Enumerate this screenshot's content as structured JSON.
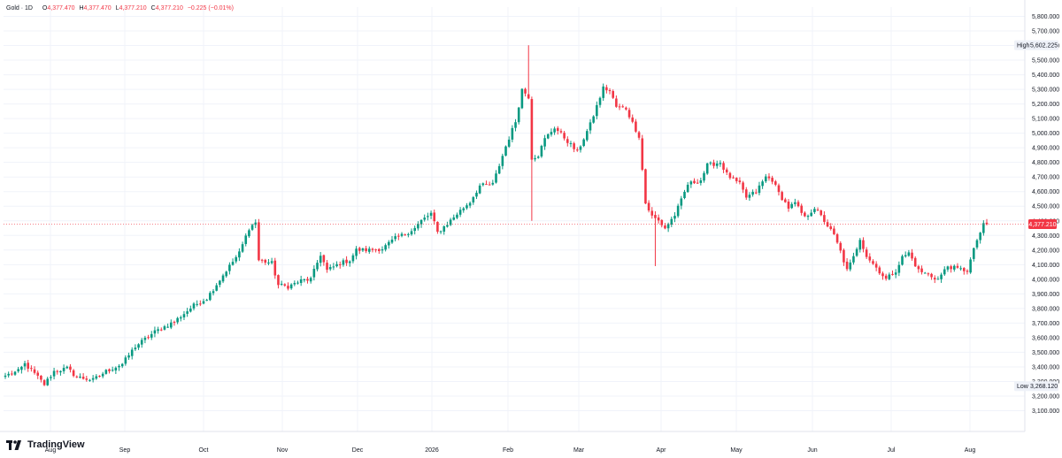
{
  "header": {
    "symbol": "Gold · 1D",
    "open_label": "O",
    "open": "4,377.470",
    "high_label": "H",
    "high": "4,377.470",
    "low_label": "L",
    "low": "4,377.210",
    "close_label": "C",
    "close": "4,377.210",
    "change": "−0.225 (−0.01%)"
  },
  "branding": {
    "name": "TradingView"
  },
  "markers": {
    "high_label": "High",
    "high_value": "5,602.225",
    "low_label": "Low",
    "low_value": "3,268.120",
    "last_value": "4,377.210"
  },
  "colors": {
    "up": "#089981",
    "down": "#f23645",
    "grid": "#f0f3fa",
    "text": "#131722"
  },
  "chart_data": {
    "type": "candlestick",
    "title": "Gold · 1D",
    "x_tick_labels": [
      "Aug",
      "Sep",
      "Oct",
      "Nov",
      "Dec",
      "2026",
      "Feb",
      "Mar",
      "Apr",
      "May",
      "Jun",
      "Jul",
      "Aug"
    ],
    "y_tick_labels": [
      "5,800.000",
      "5,700.000",
      "5,600.000",
      "5,500.000",
      "5,400.000",
      "5,300.000",
      "5,200.000",
      "5,100.000",
      "5,000.000",
      "4,900.000",
      "4,800.000",
      "4,700.000",
      "4,600.000",
      "4,500.000",
      "4,400.000",
      "4,300.000",
      "4,200.000",
      "4,100.000",
      "4,000.000",
      "3,900.000",
      "3,800.000",
      "3,700.000",
      "3,600.000",
      "3,500.000",
      "3,400.000",
      "3,300.000",
      "3,200.000",
      "3,100.000"
    ],
    "ylim": [
      3050,
      5850
    ],
    "grid": true,
    "series_high": 5602.225,
    "series_low": 3268.12,
    "last_close": 4377.21,
    "key_points": [
      [
        0,
        3340
      ],
      [
        4,
        3370
      ],
      [
        6,
        3420
      ],
      [
        10,
        3330
      ],
      [
        12,
        3280
      ],
      [
        15,
        3370
      ],
      [
        19,
        3390
      ],
      [
        22,
        3330
      ],
      [
        27,
        3310
      ],
      [
        31,
        3370
      ],
      [
        36,
        3420
      ],
      [
        40,
        3540
      ],
      [
        46,
        3640
      ],
      [
        52,
        3710
      ],
      [
        58,
        3820
      ],
      [
        62,
        3870
      ],
      [
        68,
        4060
      ],
      [
        72,
        4180
      ],
      [
        75,
        4350
      ],
      [
        77,
        4390
      ],
      [
        78,
        4130
      ],
      [
        82,
        4110
      ],
      [
        84,
        3960
      ],
      [
        87,
        3950
      ],
      [
        91,
        3990
      ],
      [
        94,
        4000
      ],
      [
        97,
        4170
      ],
      [
        99,
        4060
      ],
      [
        103,
        4110
      ],
      [
        106,
        4130
      ],
      [
        108,
        4200
      ],
      [
        112,
        4200
      ],
      [
        116,
        4210
      ],
      [
        120,
        4280
      ],
      [
        123,
        4310
      ],
      [
        126,
        4350
      ],
      [
        128,
        4400
      ],
      [
        131,
        4450
      ],
      [
        133,
        4320
      ],
      [
        136,
        4380
      ],
      [
        140,
        4470
      ],
      [
        143,
        4530
      ],
      [
        146,
        4640
      ],
      [
        150,
        4650
      ],
      [
        154,
        4910
      ],
      [
        157,
        5080
      ],
      [
        159,
        5300
      ],
      [
        161,
        5250
      ],
      [
        162,
        4830
      ],
      [
        164,
        4850
      ],
      [
        166,
        4960
      ],
      [
        169,
        5040
      ],
      [
        172,
        4970
      ],
      [
        176,
        4870
      ],
      [
        180,
        5060
      ],
      [
        184,
        5310
      ],
      [
        186,
        5290
      ],
      [
        188,
        5180
      ],
      [
        191,
        5170
      ],
      [
        193,
        5070
      ],
      [
        195,
        4980
      ],
      [
        197,
        4520
      ],
      [
        199,
        4430
      ],
      [
        201,
        4400
      ],
      [
        203,
        4350
      ],
      [
        206,
        4440
      ],
      [
        208,
        4540
      ],
      [
        210,
        4650
      ],
      [
        214,
        4680
      ],
      [
        216,
        4780
      ],
      [
        220,
        4800
      ],
      [
        222,
        4720
      ],
      [
        224,
        4680
      ],
      [
        226,
        4650
      ],
      [
        228,
        4560
      ],
      [
        231,
        4600
      ],
      [
        234,
        4700
      ],
      [
        236,
        4680
      ],
      [
        238,
        4590
      ],
      [
        241,
        4490
      ],
      [
        243,
        4520
      ],
      [
        246,
        4420
      ],
      [
        249,
        4490
      ],
      [
        252,
        4400
      ],
      [
        255,
        4300
      ],
      [
        257,
        4190
      ],
      [
        259,
        4060
      ],
      [
        261,
        4150
      ],
      [
        263,
        4280
      ],
      [
        265,
        4160
      ],
      [
        268,
        4080
      ],
      [
        271,
        4000
      ],
      [
        274,
        4060
      ],
      [
        276,
        4150
      ],
      [
        278,
        4180
      ],
      [
        281,
        4060
      ],
      [
        284,
        4030
      ],
      [
        287,
        4000
      ],
      [
        290,
        4090
      ],
      [
        293,
        4070
      ],
      [
        296,
        4060
      ],
      [
        299,
        4270
      ],
      [
        301,
        4370
      ],
      [
        302,
        4377.21
      ]
    ]
  }
}
